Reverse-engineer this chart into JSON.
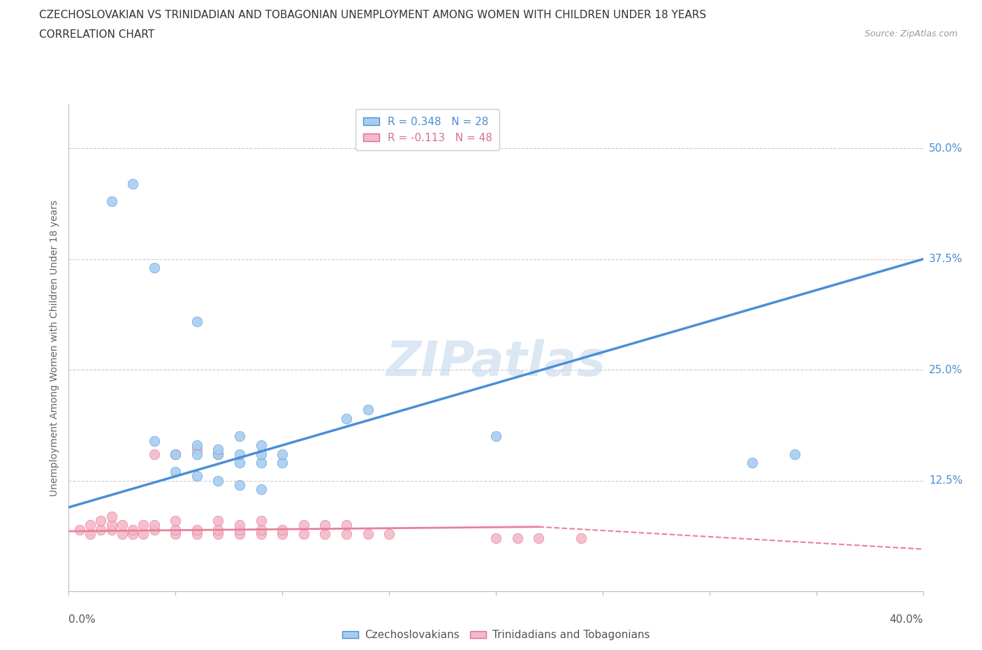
{
  "title_line1": "CZECHOSLOVAKIAN VS TRINIDADIAN AND TOBAGONIAN UNEMPLOYMENT AMONG WOMEN WITH CHILDREN UNDER 18 YEARS",
  "title_line2": "CORRELATION CHART",
  "source": "Source: ZipAtlas.com",
  "ylabel": "Unemployment Among Women with Children Under 18 years",
  "watermark": "ZIPatlas",
  "legend_r1": "R = 0.348   N = 28",
  "legend_r2": "R = -0.113   N = 48",
  "blue_color": "#A8CCF0",
  "pink_color": "#F5B8C8",
  "blue_line_color": "#4A8FD4",
  "pink_line_color": "#E8809A",
  "blue_scatter": [
    [
      0.02,
      0.44
    ],
    [
      0.03,
      0.46
    ],
    [
      0.04,
      0.365
    ],
    [
      0.06,
      0.305
    ],
    [
      0.04,
      0.17
    ],
    [
      0.05,
      0.155
    ],
    [
      0.06,
      0.165
    ],
    [
      0.06,
      0.155
    ],
    [
      0.07,
      0.155
    ],
    [
      0.07,
      0.16
    ],
    [
      0.08,
      0.145
    ],
    [
      0.08,
      0.155
    ],
    [
      0.08,
      0.175
    ],
    [
      0.09,
      0.145
    ],
    [
      0.09,
      0.155
    ],
    [
      0.09,
      0.165
    ],
    [
      0.1,
      0.145
    ],
    [
      0.1,
      0.155
    ],
    [
      0.05,
      0.135
    ],
    [
      0.06,
      0.13
    ],
    [
      0.07,
      0.125
    ],
    [
      0.08,
      0.12
    ],
    [
      0.09,
      0.115
    ],
    [
      0.13,
      0.195
    ],
    [
      0.14,
      0.205
    ],
    [
      0.2,
      0.175
    ],
    [
      0.32,
      0.145
    ],
    [
      0.34,
      0.155
    ]
  ],
  "pink_scatter": [
    [
      0.005,
      0.07
    ],
    [
      0.01,
      0.065
    ],
    [
      0.01,
      0.075
    ],
    [
      0.015,
      0.07
    ],
    [
      0.015,
      0.08
    ],
    [
      0.02,
      0.07
    ],
    [
      0.02,
      0.075
    ],
    [
      0.02,
      0.085
    ],
    [
      0.025,
      0.065
    ],
    [
      0.025,
      0.075
    ],
    [
      0.03,
      0.065
    ],
    [
      0.03,
      0.07
    ],
    [
      0.035,
      0.065
    ],
    [
      0.035,
      0.075
    ],
    [
      0.04,
      0.07
    ],
    [
      0.04,
      0.075
    ],
    [
      0.04,
      0.155
    ],
    [
      0.05,
      0.065
    ],
    [
      0.05,
      0.07
    ],
    [
      0.05,
      0.08
    ],
    [
      0.05,
      0.155
    ],
    [
      0.06,
      0.065
    ],
    [
      0.06,
      0.07
    ],
    [
      0.06,
      0.16
    ],
    [
      0.07,
      0.065
    ],
    [
      0.07,
      0.07
    ],
    [
      0.07,
      0.08
    ],
    [
      0.07,
      0.155
    ],
    [
      0.08,
      0.065
    ],
    [
      0.08,
      0.07
    ],
    [
      0.08,
      0.075
    ],
    [
      0.09,
      0.065
    ],
    [
      0.09,
      0.07
    ],
    [
      0.09,
      0.08
    ],
    [
      0.1,
      0.065
    ],
    [
      0.1,
      0.07
    ],
    [
      0.11,
      0.065
    ],
    [
      0.11,
      0.075
    ],
    [
      0.12,
      0.065
    ],
    [
      0.12,
      0.075
    ],
    [
      0.13,
      0.065
    ],
    [
      0.13,
      0.075
    ],
    [
      0.14,
      0.065
    ],
    [
      0.15,
      0.065
    ],
    [
      0.2,
      0.06
    ],
    [
      0.21,
      0.06
    ],
    [
      0.22,
      0.06
    ],
    [
      0.24,
      0.06
    ]
  ],
  "blue_line": [
    [
      0.0,
      0.095
    ],
    [
      0.4,
      0.375
    ]
  ],
  "pink_line_solid": [
    [
      0.0,
      0.068
    ],
    [
      0.22,
      0.073
    ]
  ],
  "pink_line_dash": [
    [
      0.22,
      0.073
    ],
    [
      0.42,
      0.045
    ]
  ],
  "xlim": [
    0.0,
    0.4
  ],
  "ylim": [
    0.0,
    0.55
  ],
  "xticks": [
    0.0,
    0.05,
    0.1,
    0.15,
    0.2,
    0.25,
    0.3,
    0.35,
    0.4
  ],
  "ytick_vals": [
    0.0,
    0.125,
    0.25,
    0.375,
    0.5
  ],
  "ytick_labels_right": [
    "50.0%",
    "37.5%",
    "25.0%",
    "12.5%"
  ],
  "ytick_vals_right": [
    0.5,
    0.375,
    0.25,
    0.125
  ],
  "figsize": [
    14.06,
    9.3
  ],
  "dpi": 100
}
